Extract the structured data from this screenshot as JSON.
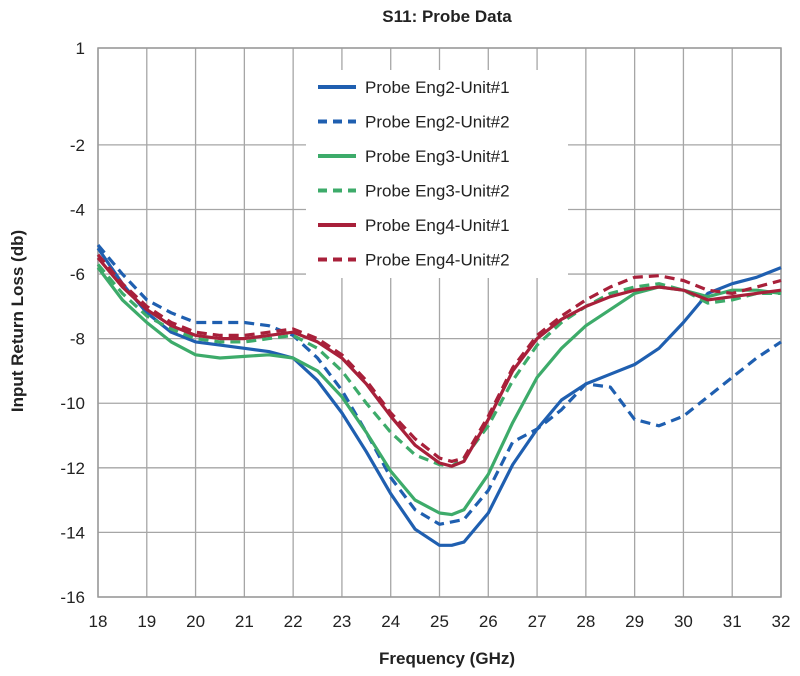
{
  "chart_data": {
    "type": "line",
    "title": "S11: Probe Data",
    "xlabel": "Frequency (GHz)",
    "ylabel": "Input Return Loss (db)",
    "xlim": [
      18,
      32
    ],
    "ylim": [
      -16,
      1
    ],
    "x_ticks": [
      18,
      19,
      20,
      21,
      22,
      23,
      24,
      25,
      26,
      27,
      28,
      29,
      30,
      31,
      32
    ],
    "x_tick_labels": [
      "18",
      "19",
      "20",
      "21",
      "22",
      "23",
      "24",
      "25",
      "26",
      "27",
      "28",
      "29",
      "30",
      "31",
      "32"
    ],
    "y_ticks": [
      1,
      -2,
      -4,
      -6,
      -8,
      -10,
      -12,
      -14,
      -16
    ],
    "y_tick_labels": [
      "1",
      "-2",
      "-4",
      "-6",
      "-8",
      "-10",
      "-12",
      "-14",
      "-16"
    ],
    "grid": true,
    "legend_position": "top-center",
    "series": [
      {
        "name": "Probe Eng2-Unit#1",
        "color": "#1f5fb0",
        "style": "solid",
        "x": [
          18,
          18.5,
          19,
          19.5,
          20,
          20.5,
          21,
          21.5,
          22,
          22.5,
          23,
          23.5,
          24,
          24.5,
          25,
          25.25,
          25.5,
          26,
          26.5,
          27,
          27.5,
          28,
          28.5,
          29,
          29.5,
          30,
          30.5,
          31,
          31.5,
          32
        ],
        "y": [
          -5.2,
          -6.3,
          -7.2,
          -7.8,
          -8.1,
          -8.2,
          -8.3,
          -8.4,
          -8.6,
          -9.3,
          -10.3,
          -11.5,
          -12.8,
          -13.9,
          -14.4,
          -14.4,
          -14.3,
          -13.4,
          -11.9,
          -10.8,
          -9.9,
          -9.4,
          -9.1,
          -8.8,
          -8.3,
          -7.5,
          -6.6,
          -6.3,
          -6.1,
          -5.8
        ]
      },
      {
        "name": "Probe Eng2-Unit#2",
        "color": "#1f5fb0",
        "style": "dashed",
        "x": [
          18,
          18.5,
          19,
          19.5,
          20,
          20.5,
          21,
          21.5,
          22,
          22.5,
          23,
          23.5,
          24,
          24.5,
          25,
          25.5,
          26,
          26.5,
          27,
          27.5,
          28,
          28.5,
          29,
          29.5,
          30,
          30.5,
          31,
          31.5,
          32
        ],
        "y": [
          -5.1,
          -6.0,
          -6.8,
          -7.2,
          -7.5,
          -7.5,
          -7.5,
          -7.6,
          -7.9,
          -8.6,
          -9.6,
          -10.9,
          -12.3,
          -13.3,
          -13.75,
          -13.6,
          -12.7,
          -11.2,
          -10.8,
          -10.2,
          -9.4,
          -9.5,
          -10.5,
          -10.7,
          -10.4,
          -9.8,
          -9.2,
          -8.6,
          -8.1
        ]
      },
      {
        "name": "Probe Eng3-Unit#1",
        "color": "#3dab6a",
        "style": "solid",
        "x": [
          18,
          18.5,
          19,
          19.5,
          20,
          20.5,
          21,
          21.5,
          22,
          22.5,
          23,
          23.5,
          24,
          24.5,
          25,
          25.25,
          25.5,
          26,
          26.5,
          27,
          27.5,
          28,
          28.5,
          29,
          29.5,
          30,
          30.5,
          31,
          31.5,
          32
        ],
        "y": [
          -5.8,
          -6.8,
          -7.5,
          -8.1,
          -8.5,
          -8.6,
          -8.55,
          -8.5,
          -8.6,
          -9.0,
          -9.8,
          -10.9,
          -12.1,
          -13.0,
          -13.4,
          -13.45,
          -13.3,
          -12.2,
          -10.6,
          -9.2,
          -8.3,
          -7.6,
          -7.1,
          -6.6,
          -6.4,
          -6.5,
          -6.7,
          -6.5,
          -6.5,
          -6.6
        ]
      },
      {
        "name": "Probe Eng3-Unit#2",
        "color": "#3dab6a",
        "style": "dashed",
        "x": [
          18,
          18.5,
          19,
          19.5,
          20,
          20.5,
          21,
          21.5,
          22,
          22.5,
          23,
          23.5,
          24,
          24.5,
          25,
          25.25,
          25.5,
          26,
          26.5,
          27,
          27.5,
          28,
          28.5,
          29,
          29.5,
          30,
          30.5,
          31,
          31.5,
          32
        ],
        "y": [
          -5.7,
          -6.6,
          -7.3,
          -7.7,
          -8.0,
          -8.1,
          -8.1,
          -8.0,
          -7.9,
          -8.3,
          -9.0,
          -10.0,
          -10.9,
          -11.6,
          -11.9,
          -11.95,
          -11.7,
          -10.7,
          -9.3,
          -8.2,
          -7.5,
          -7.0,
          -6.6,
          -6.4,
          -6.3,
          -6.5,
          -6.9,
          -6.8,
          -6.6,
          -6.6
        ]
      },
      {
        "name": "Probe Eng4-Unit#1",
        "color": "#a8203a",
        "style": "solid",
        "x": [
          18,
          18.5,
          19,
          19.5,
          20,
          20.5,
          21,
          21.5,
          22,
          22.5,
          23,
          23.5,
          24,
          24.5,
          25,
          25.25,
          25.5,
          26,
          26.5,
          27,
          27.5,
          28,
          28.5,
          29,
          29.5,
          30,
          30.5,
          31,
          31.5,
          32
        ],
        "y": [
          -5.5,
          -6.4,
          -7.1,
          -7.6,
          -7.9,
          -8.0,
          -8.0,
          -7.9,
          -7.8,
          -8.1,
          -8.6,
          -9.4,
          -10.4,
          -11.3,
          -11.85,
          -11.95,
          -11.8,
          -10.5,
          -9.0,
          -8.0,
          -7.4,
          -7.0,
          -6.7,
          -6.5,
          -6.4,
          -6.5,
          -6.8,
          -6.7,
          -6.6,
          -6.5
        ]
      },
      {
        "name": "Probe Eng4-Unit#2",
        "color": "#a8203a",
        "style": "dashed",
        "x": [
          18,
          18.5,
          19,
          19.5,
          20,
          20.5,
          21,
          21.5,
          22,
          22.5,
          23,
          23.5,
          24,
          24.5,
          25,
          25.25,
          25.5,
          26,
          26.5,
          27,
          27.5,
          28,
          28.5,
          29,
          29.5,
          30,
          30.5,
          31,
          31.5,
          32
        ],
        "y": [
          -5.4,
          -6.3,
          -7.0,
          -7.5,
          -7.8,
          -7.9,
          -7.9,
          -7.8,
          -7.7,
          -8.0,
          -8.5,
          -9.3,
          -10.3,
          -11.1,
          -11.7,
          -11.8,
          -11.7,
          -10.4,
          -8.9,
          -7.9,
          -7.3,
          -6.8,
          -6.4,
          -6.1,
          -6.05,
          -6.2,
          -6.5,
          -6.6,
          -6.4,
          -6.2
        ]
      }
    ]
  }
}
